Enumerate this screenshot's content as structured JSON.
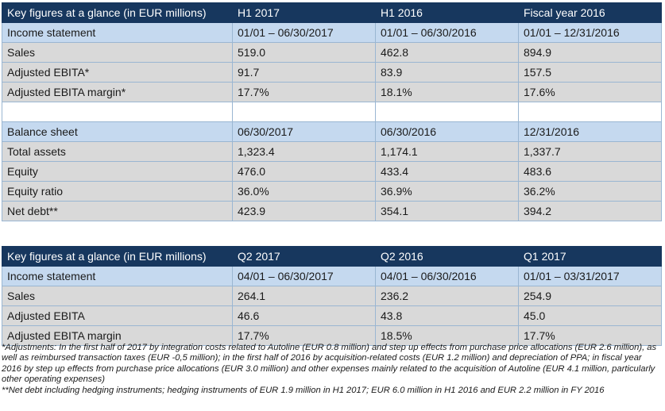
{
  "table1": {
    "header": [
      "Key figures at a glance (in EUR millions)",
      "H1 2017",
      "H1 2016",
      "Fiscal year 2016"
    ],
    "income_statement": [
      "Income statement",
      "01/01 – 06/30/2017",
      "01/01 – 06/30/2016",
      "01/01 – 12/31/2016"
    ],
    "income_rows": [
      [
        "Sales",
        "519.0",
        "462.8",
        "894.9"
      ],
      [
        "Adjusted EBITA*",
        "91.7",
        "83.9",
        "157.5"
      ],
      [
        "Adjusted EBITA margin*",
        "17.7%",
        "18.1%",
        "17.6%"
      ]
    ],
    "balance_sheet": [
      "Balance sheet",
      "06/30/2017",
      "06/30/2016",
      "12/31/2016"
    ],
    "balance_rows": [
      [
        "Total assets",
        "1,323.4",
        "1,174.1",
        "1,337.7"
      ],
      [
        "Equity",
        "476.0",
        "433.4",
        "483.6"
      ],
      [
        "Equity ratio",
        "36.0%",
        "36.9%",
        "36.2%"
      ],
      [
        "Net debt**",
        "423.9",
        "354.1",
        "394.2"
      ]
    ]
  },
  "table2": {
    "header": [
      "Key figures at a glance (in EUR millions)",
      "Q2 2017",
      "Q2 2016",
      "Q1 2017"
    ],
    "income_statement": [
      "Income statement",
      "04/01 – 06/30/2017",
      "04/01 – 06/30/2016",
      "01/01 – 03/31/2017"
    ],
    "income_rows": [
      [
        "Sales",
        "264.1",
        "236.2",
        "254.9"
      ],
      [
        "Adjusted EBITA",
        "46.6",
        "43.8",
        "45.0"
      ],
      [
        "Adjusted EBITA margin",
        "17.7%",
        "18.5%",
        "17.7%"
      ]
    ]
  },
  "footnotes": {
    "adjustments": "*Adjustments: In the first half of 2017 by integration costs related to Autoline (EUR 0.8 million) and step up effects from purchase price allocations (EUR 2.6 million), as well as reimbursed transaction taxes (EUR -0,5 million); in the first half of 2016 by acquisition-related costs (EUR 1.2 million) and depreciation of PPA; in fiscal year 2016 by step up effects from purchase price allocations (EUR 3.0 million) and other expenses mainly related to the acquisition of Autoline (EUR 4.1 million, particularly other operating expenses)",
    "net_debt": "**Net debt including hedging instruments; hedging instruments of EUR 1.9 million in H1 2017; EUR 6.0 million in H1 2016 and EUR 2.2 million in FY 2016"
  }
}
